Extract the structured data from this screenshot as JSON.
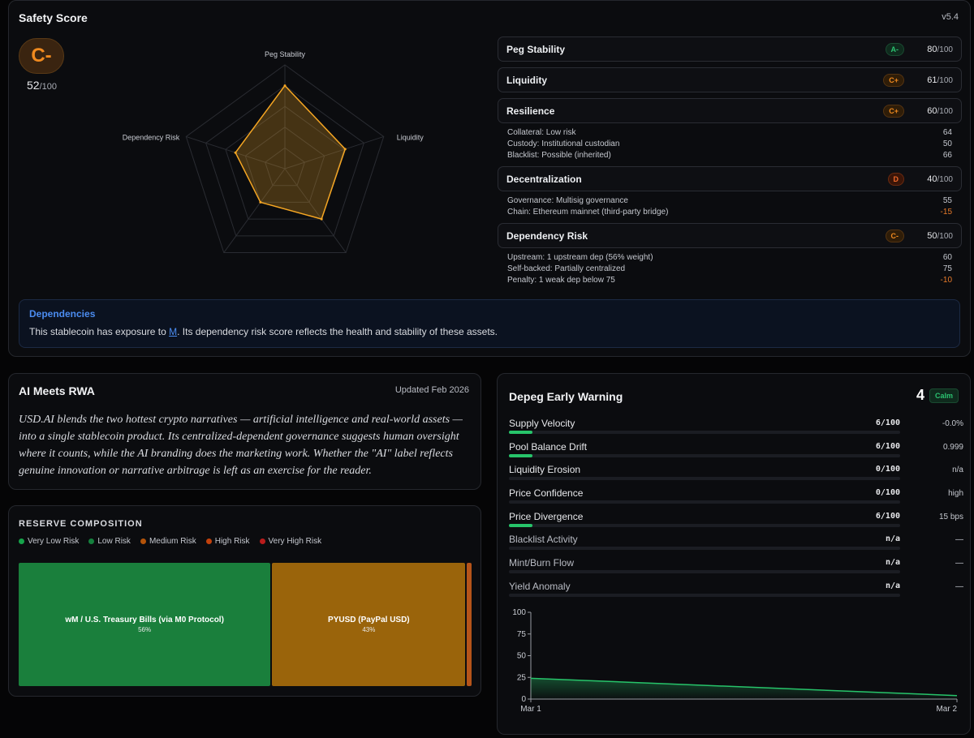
{
  "safety": {
    "title": "Safety Score",
    "version": "v5.4",
    "grade": "C-",
    "score": "52",
    "score_den": "/100",
    "radar": {
      "axes": [
        "Peg Stability",
        "Liquidity",
        "Resilience",
        "Decentralization",
        "Dependency Risk"
      ],
      "values": [
        80,
        61,
        60,
        40,
        50
      ],
      "max": 100,
      "color": "#f5a623"
    },
    "dimensions": [
      {
        "name": "Peg Stability",
        "grade": "A-",
        "grade_color": "green",
        "score": "80",
        "den": "/100",
        "details": []
      },
      {
        "name": "Liquidity",
        "grade": "C+",
        "grade_color": "orange",
        "score": "61",
        "den": "/100",
        "details": []
      },
      {
        "name": "Resilience",
        "grade": "C+",
        "grade_color": "orange",
        "score": "60",
        "den": "/100",
        "details": [
          {
            "label": "Collateral: Low risk",
            "value": "64"
          },
          {
            "label": "Custody: Institutional custodian",
            "value": "50"
          },
          {
            "label": "Blacklist: Possible (inherited)",
            "value": "66"
          }
        ]
      },
      {
        "name": "Decentralization",
        "grade": "D",
        "grade_color": "red",
        "score": "40",
        "den": "/100",
        "details": [
          {
            "label": "Governance: Multisig governance",
            "value": "55"
          },
          {
            "label": "Chain: Ethereum mainnet (third-party bridge)",
            "value": "-15"
          }
        ]
      },
      {
        "name": "Dependency Risk",
        "grade": "C-",
        "grade_color": "orange",
        "score": "50",
        "den": "/100",
        "details": [
          {
            "label": "Upstream: 1 upstream dep (56% weight)",
            "value": "60"
          },
          {
            "label": "Self-backed: Partially centralized",
            "value": "75"
          },
          {
            "label": "Penalty: 1 weak dep below 75",
            "value": "-10"
          }
        ]
      }
    ],
    "dependencies": {
      "title": "Dependencies",
      "text_before": "This stablecoin has exposure to ",
      "link": "M",
      "text_after": ". Its dependency risk score reflects the health and stability of these assets."
    }
  },
  "ai_card": {
    "title": "AI Meets RWA",
    "updated": "Updated Feb 2026",
    "body": "USD.AI blends the two hottest crypto narratives — artificial intelligence and real-world assets — into a single stablecoin product. Its centralized-dependent governance suggests human oversight where it counts, while the AI branding does the marketing work. Whether the \"AI\" label reflects genuine innovation or narrative arbitrage is left as an exercise for the reader."
  },
  "reserve": {
    "title": "RESERVE COMPOSITION",
    "legend": [
      {
        "label": "Very Low Risk",
        "color": "#16a34a"
      },
      {
        "label": "Low Risk",
        "color": "#15803d"
      },
      {
        "label": "Medium Risk",
        "color": "#b45309"
      },
      {
        "label": "High Risk",
        "color": "#c2410c"
      },
      {
        "label": "Very High Risk",
        "color": "#b91c1c"
      }
    ],
    "tiles": [
      {
        "name": "wM / U.S. Treasury Bills (via M0 Protocol)",
        "pct": "56%",
        "share": 56,
        "color": "#1a7f3c"
      },
      {
        "name": "PYUSD (PayPal USD)",
        "pct": "43%",
        "share": 43,
        "color": "#9a640b"
      },
      {
        "name": "",
        "pct": "",
        "share": 1,
        "color": "#b5541a"
      }
    ]
  },
  "depeg": {
    "title": "Depeg Early Warning",
    "score": "4",
    "status": "Calm",
    "signals": [
      {
        "name": "Supply Velocity",
        "score": "6/100",
        "level": 6,
        "value": "-0.0%",
        "active": true
      },
      {
        "name": "Pool Balance Drift",
        "score": "6/100",
        "level": 6,
        "value": "0.999",
        "active": true
      },
      {
        "name": "Liquidity Erosion",
        "score": "0/100",
        "level": 0,
        "value": "n/a",
        "active": true
      },
      {
        "name": "Price Confidence",
        "score": "0/100",
        "level": 0,
        "value": "high",
        "active": true
      },
      {
        "name": "Price Divergence",
        "score": "6/100",
        "level": 6,
        "value": "15 bps",
        "active": true
      },
      {
        "name": "Blacklist Activity",
        "score": "n/a",
        "level": 0,
        "value": "—",
        "active": false
      },
      {
        "name": "Mint/Burn Flow",
        "score": "n/a",
        "level": 0,
        "value": "—",
        "active": false
      },
      {
        "name": "Yield Anomaly",
        "score": "n/a",
        "level": 0,
        "value": "—",
        "active": false
      }
    ],
    "chart_data": {
      "type": "area",
      "x": [
        "Mar 1",
        "Mar 2"
      ],
      "values": [
        24,
        4
      ],
      "ylim": [
        0,
        100
      ],
      "yticks": [
        "0",
        "25",
        "50",
        "75",
        "100"
      ],
      "color": "#27c46a"
    }
  }
}
